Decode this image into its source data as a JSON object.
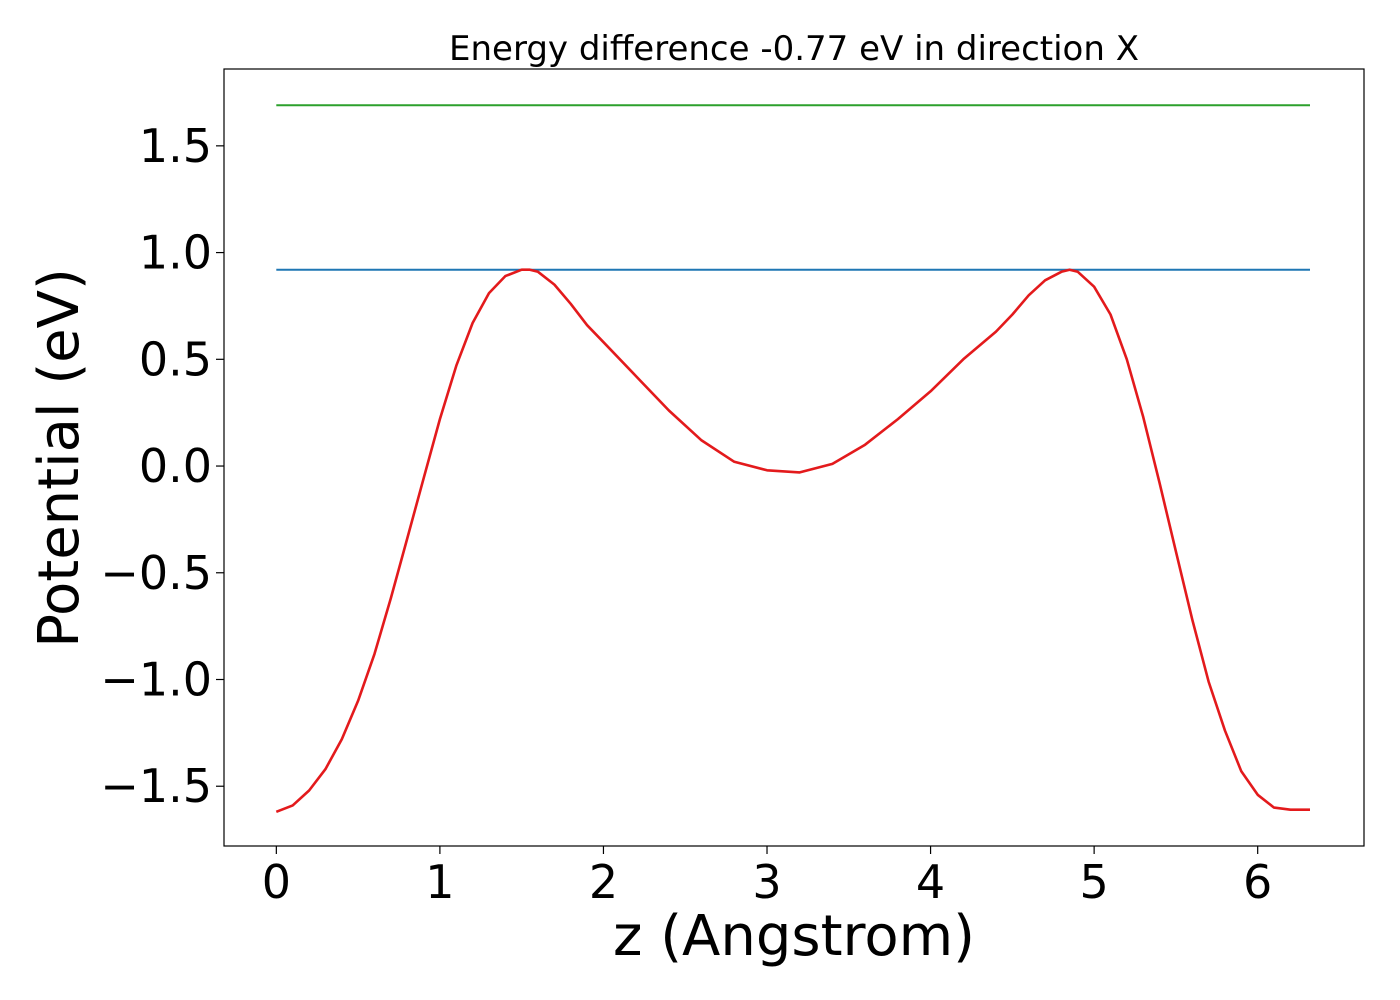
{
  "chart_data": {
    "type": "line",
    "title": "Energy difference -0.77 eV in direction X",
    "xlabel": "z (Angstrom)",
    "ylabel": "Potential (eV)",
    "xlim": [
      -0.32,
      6.65
    ],
    "ylim": [
      -1.78,
      1.86
    ],
    "x_ticks": [
      0,
      1,
      2,
      3,
      4,
      5,
      6
    ],
    "x_tick_labels": [
      "0",
      "1",
      "2",
      "3",
      "4",
      "5",
      "6"
    ],
    "y_ticks": [
      -1.5,
      -1.0,
      -0.5,
      0.0,
      0.5,
      1.0,
      1.5
    ],
    "y_tick_labels": [
      "−1.5",
      "−1.0",
      "−0.5",
      "0.0",
      "0.5",
      "1.0",
      "1.5"
    ],
    "grid": false,
    "colors": {
      "potential": "#e31a1c",
      "level_low": "#1f77b4",
      "level_high": "#2ca02c"
    },
    "series": [
      {
        "x": [
          0.0,
          0.1,
          0.2,
          0.3,
          0.4,
          0.5,
          0.6,
          0.7,
          0.8,
          0.9,
          1.0,
          1.1,
          1.2,
          1.3,
          1.4,
          1.5,
          1.55,
          1.6,
          1.7,
          1.8,
          1.9,
          2.0,
          2.2,
          2.4,
          2.6,
          2.8,
          3.0,
          3.2,
          3.4,
          3.6,
          3.8,
          4.0,
          4.2,
          4.4,
          4.5,
          4.6,
          4.7,
          4.8,
          4.85,
          4.9,
          5.0,
          5.1,
          5.2,
          5.3,
          5.4,
          5.5,
          5.6,
          5.7,
          5.8,
          5.9,
          6.0,
          6.1,
          6.2,
          6.32
        ],
        "y": [
          -1.62,
          -1.59,
          -1.52,
          -1.42,
          -1.28,
          -1.1,
          -0.88,
          -0.62,
          -0.34,
          -0.06,
          0.22,
          0.47,
          0.67,
          0.81,
          0.89,
          0.92,
          0.92,
          0.91,
          0.85,
          0.76,
          0.66,
          0.58,
          0.42,
          0.26,
          0.12,
          0.02,
          -0.02,
          -0.03,
          0.01,
          0.1,
          0.22,
          0.35,
          0.5,
          0.63,
          0.71,
          0.8,
          0.87,
          0.91,
          0.92,
          0.91,
          0.84,
          0.71,
          0.5,
          0.23,
          -0.08,
          -0.4,
          -0.72,
          -1.01,
          -1.24,
          -1.43,
          -1.54,
          -1.6,
          -1.61,
          -1.61
        ]
      },
      {
        "x": [
          0.0,
          6.32
        ],
        "y": [
          0.92,
          0.92
        ]
      },
      {
        "x": [
          0.0,
          6.32
        ],
        "y": [
          1.69,
          1.69
        ]
      }
    ]
  }
}
